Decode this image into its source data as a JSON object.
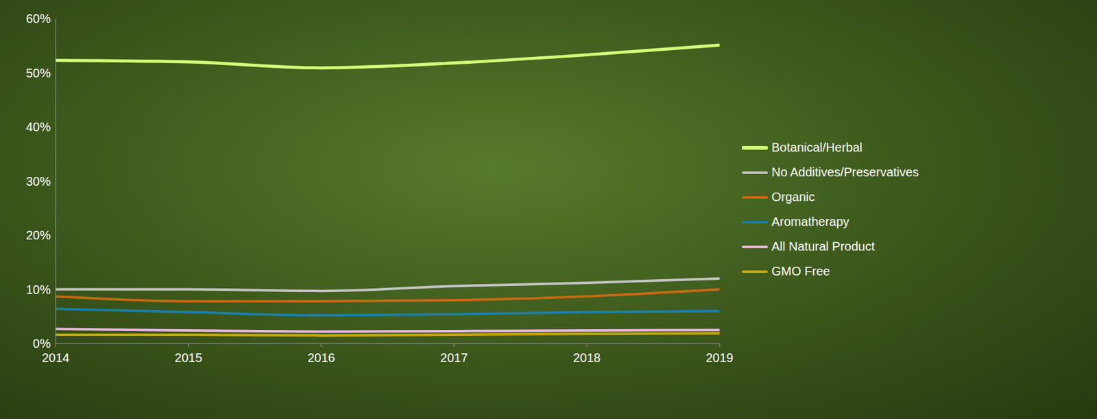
{
  "chart_data": {
    "type": "line",
    "categories": [
      "2014",
      "2015",
      "2016",
      "2017",
      "2018",
      "2019"
    ],
    "series": [
      {
        "name": "Botanical/Herbal",
        "color": "#d2ff78",
        "values": [
          52.3,
          52.0,
          50.9,
          51.8,
          53.3,
          55.1
        ]
      },
      {
        "name": "No Additives/Preservatives",
        "color": "#c4c4c4",
        "values": [
          10.0,
          10.0,
          9.7,
          10.6,
          11.2,
          12.0
        ]
      },
      {
        "name": "Organic",
        "color": "#c86a12",
        "values": [
          8.7,
          7.8,
          7.8,
          8.0,
          8.7,
          10.0
        ]
      },
      {
        "name": "Aromatherapy",
        "color": "#1b7fa8",
        "values": [
          6.4,
          5.8,
          5.2,
          5.4,
          5.8,
          6.0
        ]
      },
      {
        "name": "All Natural Product",
        "color": "#e8b8e0",
        "values": [
          2.7,
          2.4,
          2.2,
          2.3,
          2.4,
          2.5
        ]
      },
      {
        "name": "GMO Free",
        "color": "#c8a800",
        "values": [
          1.6,
          1.6,
          1.5,
          1.6,
          1.8,
          1.9
        ]
      }
    ],
    "ylim": [
      0,
      60
    ],
    "yticks": [
      {
        "value": 0,
        "label": "0%"
      },
      {
        "value": 10,
        "label": "10%"
      },
      {
        "value": 20,
        "label": "20%"
      },
      {
        "value": 30,
        "label": "30%"
      },
      {
        "value": 40,
        "label": "40%"
      },
      {
        "value": 50,
        "label": "50%"
      },
      {
        "value": 60,
        "label": "60%"
      }
    ],
    "grid": false,
    "legend": "right"
  }
}
